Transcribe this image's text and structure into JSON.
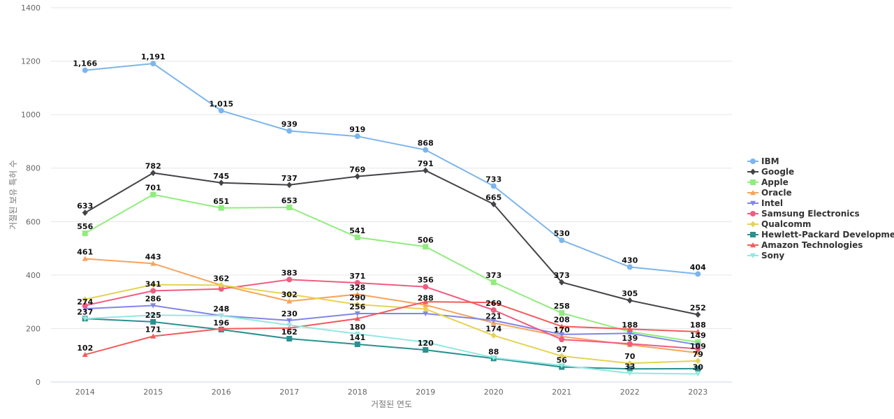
{
  "chart_data": {
    "type": "line",
    "title": "",
    "xlabel": "거절된 연도",
    "ylabel": "거절된 보유 특허 수",
    "x": [
      "2014",
      "2015",
      "2016",
      "2017",
      "2018",
      "2019",
      "2020",
      "2021",
      "2022",
      "2023"
    ],
    "ylim": [
      0,
      1400
    ],
    "yticks": [
      0,
      200,
      400,
      600,
      800,
      1000,
      1200,
      1400
    ],
    "grid": true,
    "legend_position": "right",
    "series": [
      {
        "name": "IBM",
        "color": "#7cb5ec",
        "marker": "circle",
        "values": [
          1166,
          1191,
          1015,
          939,
          919,
          868,
          733,
          530,
          430,
          404
        ]
      },
      {
        "name": "Google",
        "color": "#434348",
        "marker": "diamond",
        "values": [
          633,
          782,
          745,
          737,
          769,
          791,
          665,
          373,
          305,
          252
        ]
      },
      {
        "name": "Apple",
        "color": "#90ed7d",
        "marker": "square",
        "values": [
          556,
          701,
          651,
          653,
          541,
          506,
          373,
          258,
          188,
          149
        ]
      },
      {
        "name": "Oracle",
        "color": "#f7a35c",
        "marker": "triangle",
        "values": [
          461,
          443,
          362,
          302,
          328,
          288,
          221,
          170,
          139,
          109
        ]
      },
      {
        "name": "Intel",
        "color": "#8085e9",
        "marker": "triangle-down",
        "values": [
          274,
          286,
          248,
          230,
          256,
          256,
          230,
          178,
          182,
          139
        ]
      },
      {
        "name": "Samsung Electronics",
        "color": "#f15c80",
        "marker": "circle",
        "values": [
          286,
          341,
          348,
          383,
          371,
          356,
          269,
          159,
          143,
          124
        ]
      },
      {
        "name": "Qualcomm",
        "color": "#e4d354",
        "marker": "diamond",
        "values": [
          309,
          364,
          362,
          328,
          290,
          273,
          174,
          97,
          70,
          79
        ]
      },
      {
        "name": "Hewlett-Packard Development",
        "color": "#2b908f",
        "marker": "square",
        "values": [
          237,
          225,
          196,
          162,
          141,
          120,
          88,
          56,
          49,
          50
        ]
      },
      {
        "name": "Amazon Technologies",
        "color": "#f45b5b",
        "marker": "triangle",
        "values": [
          102,
          171,
          199,
          202,
          237,
          300,
          297,
          208,
          198,
          188
        ]
      },
      {
        "name": "Sony",
        "color": "#91e8e1",
        "marker": "triangle-down",
        "values": [
          237,
          250,
          248,
          213,
          180,
          149,
          91,
          62,
          33,
          30
        ]
      }
    ],
    "data_labels": [
      {
        "x": "2014",
        "v": 1166,
        "text": "1,166"
      },
      {
        "x": "2015",
        "v": 1191,
        "text": "1,191"
      },
      {
        "x": "2016",
        "v": 1015,
        "text": "1,015"
      },
      {
        "x": "2017",
        "v": 939,
        "text": "939"
      },
      {
        "x": "2018",
        "v": 919,
        "text": "919"
      },
      {
        "x": "2019",
        "v": 868,
        "text": "868"
      },
      {
        "x": "2020",
        "v": 733,
        "text": "733"
      },
      {
        "x": "2021",
        "v": 530,
        "text": "530"
      },
      {
        "x": "2022",
        "v": 430,
        "text": "430"
      },
      {
        "x": "2023",
        "v": 404,
        "text": "404"
      },
      {
        "x": "2014",
        "v": 633,
        "text": "633"
      },
      {
        "x": "2015",
        "v": 782,
        "text": "782"
      },
      {
        "x": "2016",
        "v": 745,
        "text": "745"
      },
      {
        "x": "2017",
        "v": 737,
        "text": "737"
      },
      {
        "x": "2018",
        "v": 769,
        "text": "769"
      },
      {
        "x": "2019",
        "v": 791,
        "text": "791"
      },
      {
        "x": "2020",
        "v": 665,
        "text": "665"
      },
      {
        "x": "2021",
        "v": 373,
        "text": "373"
      },
      {
        "x": "2022",
        "v": 305,
        "text": "305"
      },
      {
        "x": "2023",
        "v": 252,
        "text": "252"
      },
      {
        "x": "2014",
        "v": 556,
        "text": "556"
      },
      {
        "x": "2015",
        "v": 701,
        "text": "701"
      },
      {
        "x": "2016",
        "v": 651,
        "text": "651"
      },
      {
        "x": "2017",
        "v": 653,
        "text": "653"
      },
      {
        "x": "2018",
        "v": 541,
        "text": "541"
      },
      {
        "x": "2019",
        "v": 506,
        "text": "506"
      },
      {
        "x": "2020",
        "v": 373,
        "text": "373"
      },
      {
        "x": "2021",
        "v": 258,
        "text": "258"
      },
      {
        "x": "2022",
        "v": 188,
        "text": "188"
      },
      {
        "x": "2023",
        "v": 188,
        "text": "188"
      },
      {
        "x": "2014",
        "v": 461,
        "text": "461"
      },
      {
        "x": "2015",
        "v": 443,
        "text": "443"
      },
      {
        "x": "2016",
        "v": 362,
        "text": "362"
      },
      {
        "x": "2017",
        "v": 383,
        "text": "383"
      },
      {
        "x": "2018",
        "v": 371,
        "text": "371"
      },
      {
        "x": "2019",
        "v": 356,
        "text": "356"
      },
      {
        "x": "2014",
        "v": 274,
        "text": "274"
      },
      {
        "x": "2015",
        "v": 341,
        "text": "341"
      },
      {
        "x": "2017",
        "v": 302,
        "text": "302"
      },
      {
        "x": "2018",
        "v": 328,
        "text": "328"
      },
      {
        "x": "2019",
        "v": 288,
        "text": "288"
      },
      {
        "x": "2020",
        "v": 269,
        "text": "269"
      },
      {
        "x": "2021",
        "v": 208,
        "text": "208"
      },
      {
        "x": "2022",
        "v": 139,
        "text": "139"
      },
      {
        "x": "2023",
        "v": 149,
        "text": "149"
      },
      {
        "x": "2014",
        "v": 237,
        "text": "237"
      },
      {
        "x": "2015",
        "v": 286,
        "text": "286"
      },
      {
        "x": "2016",
        "v": 248,
        "text": "248"
      },
      {
        "x": "2017",
        "v": 230,
        "text": "230"
      },
      {
        "x": "2018",
        "v": 290,
        "text": "290"
      },
      {
        "x": "2018",
        "v": 256,
        "text": "256"
      },
      {
        "x": "2020",
        "v": 221,
        "text": "221"
      },
      {
        "x": "2021",
        "v": 170,
        "text": "170"
      },
      {
        "x": "2023",
        "v": 109,
        "text": "109"
      },
      {
        "x": "2014",
        "v": 102,
        "text": "102"
      },
      {
        "x": "2015",
        "v": 225,
        "text": "225"
      },
      {
        "x": "2015",
        "v": 171,
        "text": "171"
      },
      {
        "x": "2016",
        "v": 196,
        "text": "196"
      },
      {
        "x": "2017",
        "v": 162,
        "text": "162"
      },
      {
        "x": "2018",
        "v": 180,
        "text": "180"
      },
      {
        "x": "2018",
        "v": 141,
        "text": "141"
      },
      {
        "x": "2019",
        "v": 120,
        "text": "120"
      },
      {
        "x": "2020",
        "v": 174,
        "text": "174"
      },
      {
        "x": "2020",
        "v": 88,
        "text": "88"
      },
      {
        "x": "2021",
        "v": 97,
        "text": "97"
      },
      {
        "x": "2021",
        "v": 56,
        "text": "56"
      },
      {
        "x": "2022",
        "v": 70,
        "text": "70"
      },
      {
        "x": "2022",
        "v": 33,
        "text": "33"
      },
      {
        "x": "2023",
        "v": 79,
        "text": "79"
      },
      {
        "x": "2023",
        "v": 30,
        "text": "30"
      }
    ]
  }
}
